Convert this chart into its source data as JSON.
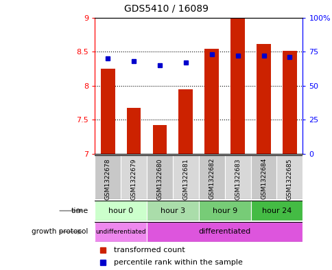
{
  "title": "GDS5410 / 16089",
  "samples": [
    "GSM1322678",
    "GSM1322679",
    "GSM1322680",
    "GSM1322681",
    "GSM1322682",
    "GSM1322683",
    "GSM1322684",
    "GSM1322685"
  ],
  "transformed_count": [
    8.25,
    7.67,
    7.42,
    7.95,
    8.54,
    8.99,
    8.61,
    8.51
  ],
  "percentile_rank": [
    70,
    68,
    65,
    67,
    73,
    72,
    72,
    71
  ],
  "y_min": 7.0,
  "y_max": 9.0,
  "y_ticks": [
    7.0,
    7.5,
    8.0,
    8.5,
    9.0
  ],
  "y2_ticks": [
    0,
    25,
    50,
    75,
    100
  ],
  "bar_color": "#cc2200",
  "dot_color": "#0000cc",
  "time_colors": [
    "#ccffcc",
    "#aaddaa",
    "#77cc77",
    "#44bb44"
  ],
  "undiff_color": "#ee88ee",
  "diff_color": "#dd55dd",
  "sample_color_even": "#c8c8c8",
  "sample_color_odd": "#d8d8d8",
  "background_color": "#ffffff"
}
